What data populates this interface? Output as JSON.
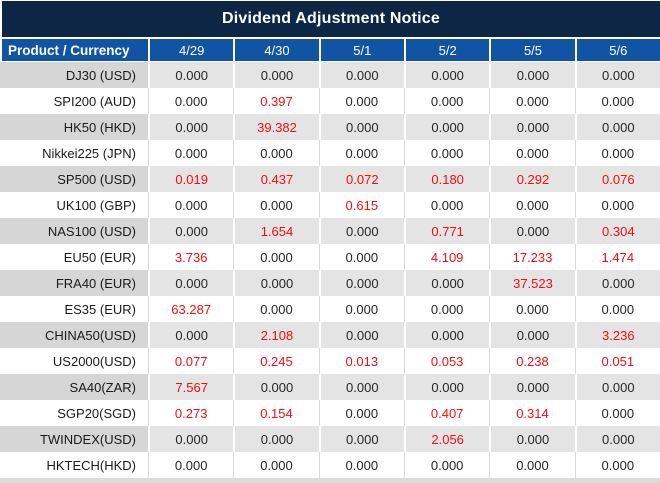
{
  "title": "Dividend Adjustment Notice",
  "table": {
    "product_header": "Product / Currency",
    "date_columns": [
      "4/29",
      "4/30",
      "5/1",
      "5/2",
      "5/5",
      "5/6"
    ],
    "zero_value": "0.000",
    "rows": [
      {
        "product": "DJ30 (USD)",
        "values": [
          "0.000",
          "0.000",
          "0.000",
          "0.000",
          "0.000",
          "0.000"
        ]
      },
      {
        "product": "SPI200 (AUD)",
        "values": [
          "0.000",
          "0.397",
          "0.000",
          "0.000",
          "0.000",
          "0.000"
        ]
      },
      {
        "product": "HK50 (HKD)",
        "values": [
          "0.000",
          "39.382",
          "0.000",
          "0.000",
          "0.000",
          "0.000"
        ]
      },
      {
        "product": "Nikkei225 (JPN)",
        "values": [
          "0.000",
          "0.000",
          "0.000",
          "0.000",
          "0.000",
          "0.000"
        ]
      },
      {
        "product": "SP500 (USD)",
        "values": [
          "0.019",
          "0.437",
          "0.072",
          "0.180",
          "0.292",
          "0.076"
        ]
      },
      {
        "product": "UK100 (GBP)",
        "values": [
          "0.000",
          "0.000",
          "0.615",
          "0.000",
          "0.000",
          "0.000"
        ]
      },
      {
        "product": "NAS100 (USD)",
        "values": [
          "0.000",
          "1.654",
          "0.000",
          "0.771",
          "0.000",
          "0.304"
        ]
      },
      {
        "product": "EU50 (EUR)",
        "values": [
          "3.736",
          "0.000",
          "0.000",
          "4.109",
          "17.233",
          "1.474"
        ]
      },
      {
        "product": "FRA40 (EUR)",
        "values": [
          "0.000",
          "0.000",
          "0.000",
          "0.000",
          "37.523",
          "0.000"
        ]
      },
      {
        "product": "ES35 (EUR)",
        "values": [
          "63.287",
          "0.000",
          "0.000",
          "0.000",
          "0.000",
          "0.000"
        ]
      },
      {
        "product": "CHINA50(USD)",
        "values": [
          "0.000",
          "2.108",
          "0.000",
          "0.000",
          "0.000",
          "3.236"
        ]
      },
      {
        "product": "US2000(USD)",
        "values": [
          "0.077",
          "0.245",
          "0.013",
          "0.053",
          "0.238",
          "0.051"
        ]
      },
      {
        "product": "SA40(ZAR)",
        "values": [
          "7.567",
          "0.000",
          "0.000",
          "0.000",
          "0.000",
          "0.000"
        ]
      },
      {
        "product": "SGP20(SGD)",
        "values": [
          "0.273",
          "0.154",
          "0.000",
          "0.407",
          "0.314",
          "0.000"
        ]
      },
      {
        "product": "TWINDEX(USD)",
        "values": [
          "0.000",
          "0.000",
          "0.000",
          "2.056",
          "0.000",
          "0.000"
        ]
      },
      {
        "product": "HKTECH(HKD)",
        "values": [
          "0.000",
          "0.000",
          "0.000",
          "0.000",
          "0.000",
          "0.000"
        ]
      }
    ]
  },
  "colors": {
    "title_bg": "#0d2646",
    "header_bg": "#1254a4",
    "row_alt_product_bg": "#d6d6d6",
    "row_alt_value_bg": "#e4e4e4",
    "value_zero_text": "#262626",
    "value_nonzero_text": "#ef0e11",
    "header_text": "#ffffff",
    "divider": "#d9d9d9"
  }
}
